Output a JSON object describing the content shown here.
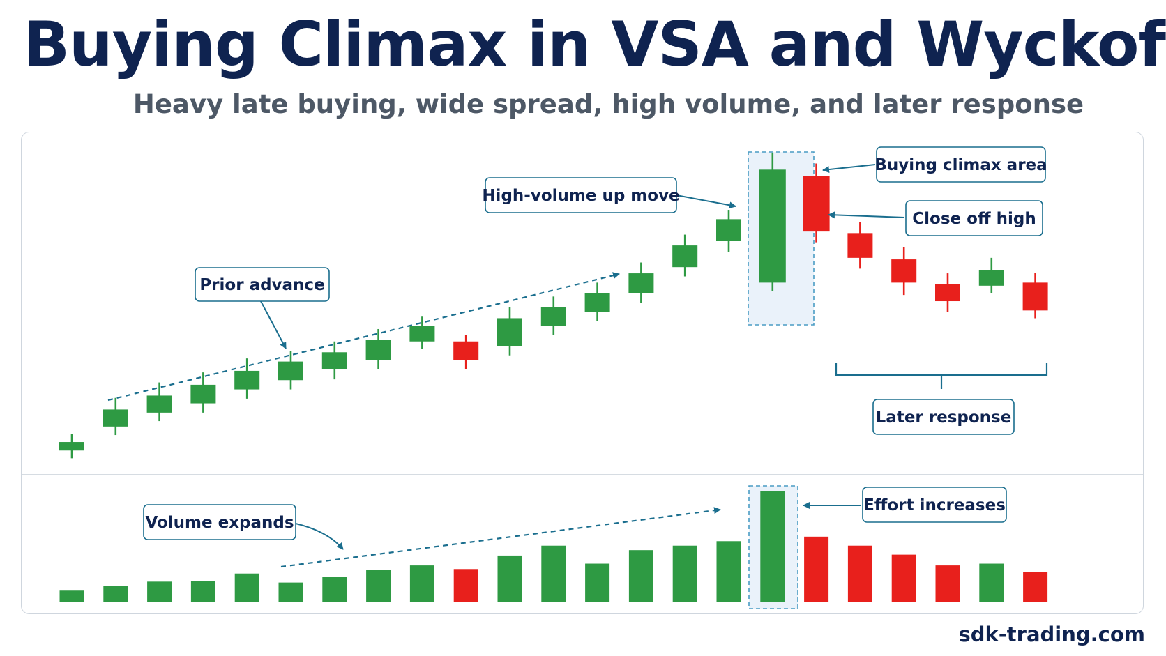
{
  "title": "Buying Climax in VSA and Wyckoff",
  "subtitle": "Heavy late buying, wide spread, high volume, and later response",
  "footer": "sdk-trading.com",
  "colors": {
    "up": "#2e9a43",
    "down": "#e8201c",
    "accent": "#1a6e8e",
    "title": "#0f2350"
  },
  "annotations": {
    "prior_advance": "Prior advance",
    "high_volume_up_move": "High-volume up move",
    "buying_climax_area": "Buying climax area",
    "close_off_high": "Close off high",
    "later_response": "Later response",
    "volume_expands": "Volume expands",
    "effort_increases": "Effort increases"
  },
  "chart_data": {
    "type": "candlestick",
    "candles": [
      {
        "open": 2.5,
        "close": 3.6,
        "high": 4.6,
        "low": 1.5
      },
      {
        "open": 5.6,
        "close": 7.8,
        "high": 9.3,
        "low": 4.5
      },
      {
        "open": 7.4,
        "close": 9.6,
        "high": 11.3,
        "low": 6.3
      },
      {
        "open": 8.6,
        "close": 11.0,
        "high": 12.6,
        "low": 7.4
      },
      {
        "open": 10.4,
        "close": 12.8,
        "high": 14.4,
        "low": 9.2
      },
      {
        "open": 11.6,
        "close": 14.0,
        "high": 15.4,
        "low": 10.4
      },
      {
        "open": 13.0,
        "close": 15.2,
        "high": 16.6,
        "low": 11.7
      },
      {
        "open": 14.2,
        "close": 16.8,
        "high": 18.2,
        "low": 13.0
      },
      {
        "open": 16.6,
        "close": 18.6,
        "high": 19.8,
        "low": 15.6
      },
      {
        "open": 16.6,
        "close": 14.2,
        "high": 17.4,
        "low": 13.0
      },
      {
        "open": 16.0,
        "close": 19.6,
        "high": 21.0,
        "low": 14.8
      },
      {
        "open": 18.6,
        "close": 21.0,
        "high": 22.4,
        "low": 17.4
      },
      {
        "open": 20.4,
        "close": 22.8,
        "high": 24.2,
        "low": 19.2
      },
      {
        "open": 22.8,
        "close": 25.4,
        "high": 26.8,
        "low": 21.6
      },
      {
        "open": 26.2,
        "close": 29.0,
        "high": 30.4,
        "low": 25.0
      },
      {
        "open": 29.6,
        "close": 32.4,
        "high": 33.6,
        "low": 28.2
      },
      {
        "open": 24.2,
        "close": 38.8,
        "high": 41.0,
        "low": 23.1
      },
      {
        "open": 38.0,
        "close": 30.8,
        "high": 39.6,
        "low": 29.4
      },
      {
        "open": 30.6,
        "close": 27.4,
        "high": 32.0,
        "low": 26.0
      },
      {
        "open": 27.2,
        "close": 24.2,
        "high": 28.8,
        "low": 22.6
      },
      {
        "open": 24.0,
        "close": 21.8,
        "high": 25.4,
        "low": 20.4
      },
      {
        "open": 23.8,
        "close": 25.8,
        "high": 27.4,
        "low": 22.8
      },
      {
        "open": 24.2,
        "close": 20.6,
        "high": 25.4,
        "low": 19.6
      }
    ],
    "volume": [
      1.3,
      1.8,
      2.3,
      2.4,
      3.2,
      2.2,
      2.8,
      3.6,
      4.1,
      3.7,
      5.2,
      6.3,
      4.3,
      5.8,
      6.3,
      6.8,
      12.4,
      7.3,
      6.3,
      5.3,
      4.1,
      4.3,
      3.4
    ]
  }
}
